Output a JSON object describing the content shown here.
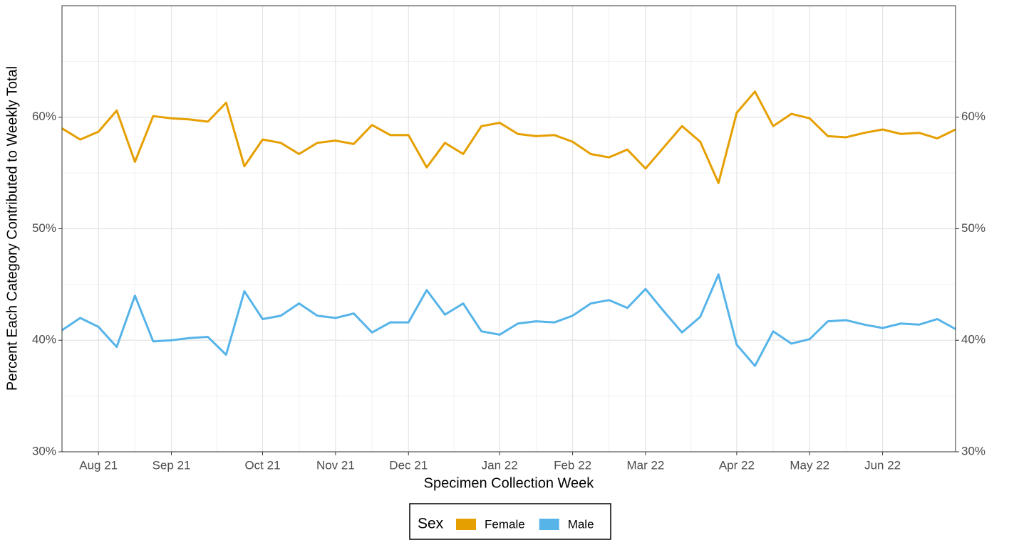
{
  "chart_data": {
    "type": "line",
    "x_label": "Specimen Collection Week",
    "y_label": "Percent Each Category Contributed to Weekly Total",
    "categories": [
      null,
      null,
      "Aug 21",
      null,
      null,
      null,
      "Sep 21",
      null,
      null,
      null,
      null,
      "Oct 21",
      null,
      null,
      null,
      "Nov 21",
      null,
      null,
      null,
      "Dec 21",
      null,
      null,
      null,
      null,
      "Jan 22",
      null,
      null,
      null,
      "Feb 22",
      null,
      null,
      null,
      "Mar 22",
      null,
      null,
      null,
      null,
      "Apr 22",
      null,
      null,
      null,
      "May 22",
      null,
      null,
      null,
      "Jun 22",
      null,
      null,
      null,
      null
    ],
    "series": [
      {
        "name": "Female",
        "color": "#E69F00",
        "values": [
          59.0,
          58.0,
          58.7,
          60.6,
          56.0,
          60.1,
          59.9,
          59.8,
          59.6,
          61.3,
          55.6,
          58.0,
          57.7,
          56.7,
          57.7,
          57.9,
          57.6,
          59.3,
          58.4,
          58.4,
          55.5,
          57.7,
          56.7,
          59.2,
          59.5,
          58.5,
          58.3,
          58.4,
          57.8,
          56.7,
          56.4,
          57.1,
          55.4,
          57.3,
          59.2,
          57.8,
          54.1,
          60.4,
          62.3,
          59.2,
          60.3,
          59.9,
          58.3,
          58.2,
          58.6,
          58.9,
          58.5,
          58.6,
          58.1,
          58.9
        ]
      },
      {
        "name": "Male",
        "color": "#56B4E9",
        "values": [
          40.9,
          42.0,
          41.2,
          39.4,
          44.0,
          39.9,
          40.0,
          40.2,
          40.3,
          38.7,
          44.4,
          41.9,
          42.2,
          43.3,
          42.2,
          42.0,
          42.4,
          40.7,
          41.6,
          41.6,
          44.5,
          42.3,
          43.3,
          40.8,
          40.5,
          41.5,
          41.7,
          41.6,
          42.2,
          43.3,
          43.6,
          42.9,
          44.6,
          42.6,
          40.7,
          42.1,
          45.9,
          39.6,
          37.7,
          40.8,
          39.7,
          40.1,
          41.7,
          41.8,
          41.4,
          41.1,
          41.5,
          41.4,
          41.9,
          41.0
        ]
      }
    ],
    "ylim": [
      30,
      70
    ],
    "yticks": [
      {
        "value": 30,
        "label": "30%"
      },
      {
        "value": 40,
        "label": "40%"
      },
      {
        "value": 50,
        "label": "50%"
      },
      {
        "value": 60,
        "label": "60%"
      }
    ],
    "y2lim": [
      30,
      70
    ],
    "y2ticks": [
      {
        "value": 30,
        "label": "30%"
      },
      {
        "value": 40,
        "label": "40%"
      },
      {
        "value": 50,
        "label": "50%"
      },
      {
        "value": 60,
        "label": "60%"
      }
    ],
    "grid": true,
    "legend_title": "Sex",
    "legend_position": "bottom"
  }
}
